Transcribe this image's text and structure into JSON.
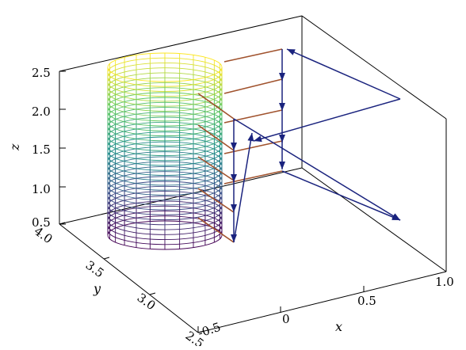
{
  "chart_data": {
    "type": "3d-wireframe-cylinder-with-quiver",
    "title": "",
    "grid": false,
    "xlabel": "x",
    "ylabel": "y",
    "zlabel": "z",
    "xticks": [
      "-0.5",
      "0",
      "0.5",
      "1.0"
    ],
    "yticks": [
      "2.5",
      "3.0",
      "3.5",
      "4.0"
    ],
    "zticks": [
      "0.5",
      "1.0",
      "1.5",
      "2.0",
      "2.5"
    ],
    "xlim": [
      -0.5,
      1.0
    ],
    "ylim": [
      2.5,
      4.0
    ],
    "zlim": [
      0.5,
      2.5
    ],
    "colormap": [
      "#440154",
      "#3b528b",
      "#21918c",
      "#5ec962",
      "#fde725"
    ],
    "mesh_color_low": "#440154",
    "mesh_color_high": "#fde725",
    "rod_color": "#a0522d",
    "arrow_color": "#1a237e"
  }
}
